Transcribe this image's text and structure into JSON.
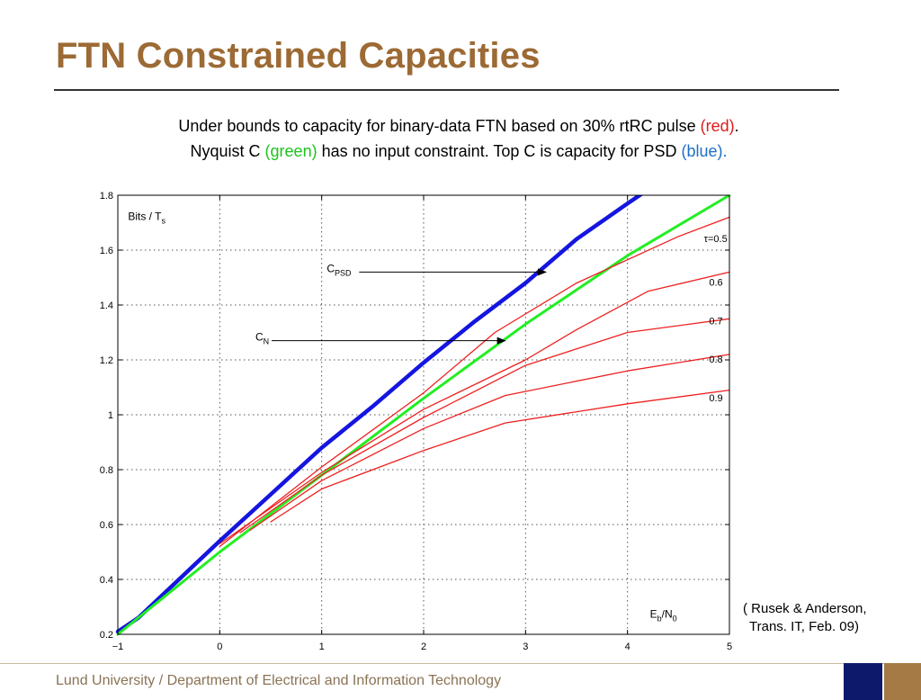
{
  "slide": {
    "title": "FTN Constrained Capacities",
    "subtitle": {
      "line1_a": "Under bounds to capacity for binary-data FTN based on 30% rtRC pulse ",
      "line1_red": "(red)",
      "line1_end": ".",
      "line2_a": "Nyquist C ",
      "line2_green": "(green)",
      "line2_b": " has no input constraint. Top C is capacity for PSD ",
      "line2_blue": "(blue)."
    },
    "citation_line1": "( Rusek & Anderson,",
    "citation_line2": "Trans. IT, Feb. 09)",
    "footer": "Lund University / Department of Electrical and Information Technology"
  },
  "colors": {
    "title": "#9c6a34",
    "red": "#e01b1b",
    "green": "#1cc21c",
    "blue": "#1f6fc5",
    "psd_curve": "#1515e0",
    "nyquist_curve": "#22ee22",
    "ftn_curve": "#ee2020",
    "footer_navy": "#0d1a6b",
    "footer_brown": "#a57a45"
  },
  "chart_data": {
    "type": "line",
    "title": "",
    "ylabel_main": "Bits / T",
    "ylabel_sub": "s",
    "xlabel_main": "E",
    "xlabel_sub1": "b",
    "xlabel_mid": "/N",
    "xlabel_sub2": "0",
    "xlim": [
      -1,
      5
    ],
    "ylim": [
      0.2,
      1.8
    ],
    "xticks": [
      -1,
      0,
      1,
      2,
      3,
      4,
      5
    ],
    "xtick_labels": [
      "−1",
      "0",
      "1",
      "2",
      "3",
      "4",
      "5"
    ],
    "yticks": [
      0.2,
      0.4,
      0.6,
      0.8,
      1,
      1.2,
      1.4,
      1.6,
      1.8
    ],
    "ytick_labels": [
      "0.2",
      "0.4",
      "0.6",
      "0.8",
      "1",
      "1.2",
      "1.4",
      "1.6",
      "1.8"
    ],
    "grid": true,
    "series": [
      {
        "name": "C_PSD",
        "color": "#1515e0",
        "points": [
          [
            -1,
            0.21
          ],
          [
            -0.8,
            0.26
          ],
          [
            -0.4,
            0.4
          ],
          [
            0,
            0.54
          ],
          [
            0.5,
            0.71
          ],
          [
            1,
            0.88
          ],
          [
            1.5,
            1.03
          ],
          [
            2,
            1.19
          ],
          [
            2.5,
            1.34
          ],
          [
            3,
            1.48
          ],
          [
            3.5,
            1.64
          ],
          [
            4,
            1.77
          ],
          [
            4.2,
            1.82
          ]
        ]
      },
      {
        "name": "C_N",
        "color": "#22ee22",
        "points": [
          [
            -1,
            0.2
          ],
          [
            0,
            0.5
          ],
          [
            1,
            0.78
          ],
          [
            2,
            1.06
          ],
          [
            3,
            1.33
          ],
          [
            4,
            1.58
          ],
          [
            5,
            1.8
          ]
        ]
      },
      {
        "name": "τ=0.5",
        "color": "#ee2020",
        "points": [
          [
            0,
            0.52
          ],
          [
            1,
            0.81
          ],
          [
            2,
            1.08
          ],
          [
            2.7,
            1.3
          ],
          [
            3.5,
            1.48
          ],
          [
            4.5,
            1.65
          ],
          [
            5,
            1.72
          ]
        ]
      },
      {
        "name": "0.6",
        "color": "#ee2020",
        "points": [
          [
            0,
            0.53
          ],
          [
            1,
            0.79
          ],
          [
            2,
            1.02
          ],
          [
            3,
            1.2
          ],
          [
            3.5,
            1.31
          ],
          [
            4.2,
            1.45
          ],
          [
            5,
            1.52
          ]
        ]
      },
      {
        "name": "0.7",
        "color": "#ee2020",
        "points": [
          [
            0.2,
            0.57
          ],
          [
            1,
            0.78
          ],
          [
            2,
            0.99
          ],
          [
            3,
            1.18
          ],
          [
            4,
            1.3
          ],
          [
            5,
            1.35
          ]
        ]
      },
      {
        "name": "0.8",
        "color": "#ee2020",
        "points": [
          [
            0.3,
            0.58
          ],
          [
            1,
            0.76
          ],
          [
            2,
            0.95
          ],
          [
            2.8,
            1.07
          ],
          [
            4,
            1.16
          ],
          [
            5,
            1.22
          ]
        ]
      },
      {
        "name": "0.9",
        "color": "#ee2020",
        "points": [
          [
            0.5,
            0.61
          ],
          [
            1,
            0.73
          ],
          [
            2,
            0.87
          ],
          [
            2.8,
            0.97
          ],
          [
            4,
            1.04
          ],
          [
            5,
            1.09
          ]
        ]
      }
    ],
    "annotations": [
      {
        "text": "C",
        "sub": "PSD",
        "x": 1.05,
        "y": 1.52,
        "arrow_to": [
          3.2,
          1.52
        ]
      },
      {
        "text": "C",
        "sub": "N",
        "x": 0.35,
        "y": 1.27,
        "arrow_to": [
          2.8,
          1.27
        ]
      }
    ],
    "tau_labels": [
      {
        "text": "τ=0.5",
        "x": 4.75,
        "y": 1.63
      },
      {
        "text": "0.6",
        "x": 4.8,
        "y": 1.47
      },
      {
        "text": "0.7",
        "x": 4.8,
        "y": 1.33
      },
      {
        "text": "0.8",
        "x": 4.8,
        "y": 1.19
      },
      {
        "text": "0.9",
        "x": 4.8,
        "y": 1.05
      }
    ]
  }
}
